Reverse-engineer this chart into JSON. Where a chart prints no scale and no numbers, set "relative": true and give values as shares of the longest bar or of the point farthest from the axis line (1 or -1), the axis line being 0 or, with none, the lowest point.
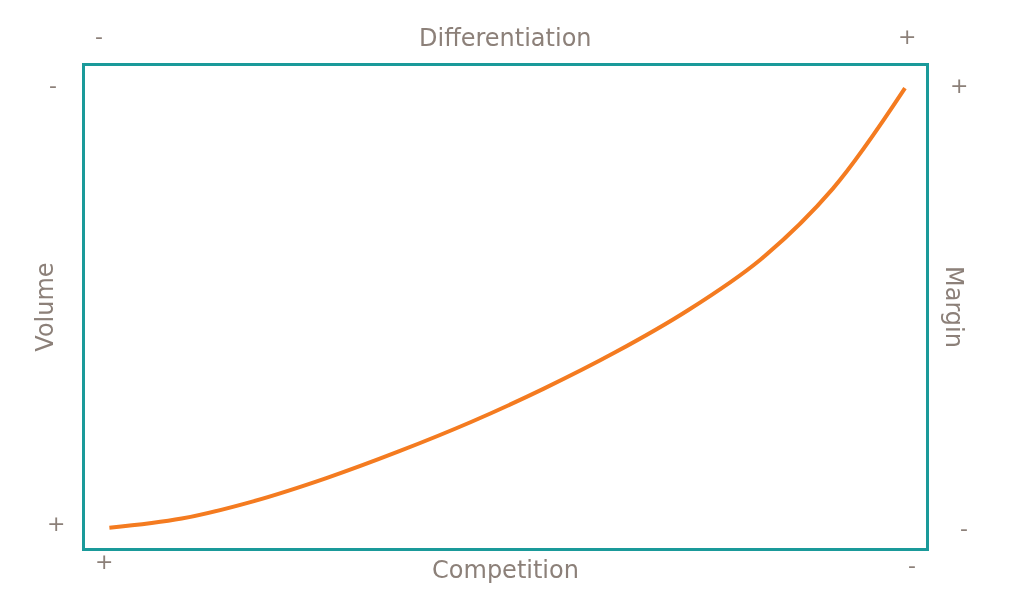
{
  "chart_data": {
    "type": "line",
    "relative": true,
    "xlabel": "Competition",
    "x2label": "Differentiation",
    "ylabel": "Volume",
    "y2label": "Margin",
    "categories": [
      null,
      null,
      null,
      null,
      null,
      null,
      null,
      null,
      null,
      null,
      null,
      null
    ],
    "series": [
      {
        "color": "#f47b20",
        "values": [
          0.044,
          0.064,
          0.102,
          0.152,
          0.21,
          0.274,
          0.346,
          0.426,
          0.517,
          0.627,
          0.781,
          1
        ]
      }
    ],
    "annotations": [
      "-",
      "+",
      "-",
      "+",
      "+",
      "-",
      "+",
      "-"
    ],
    "marker": "none",
    "line_style": "solid"
  }
}
